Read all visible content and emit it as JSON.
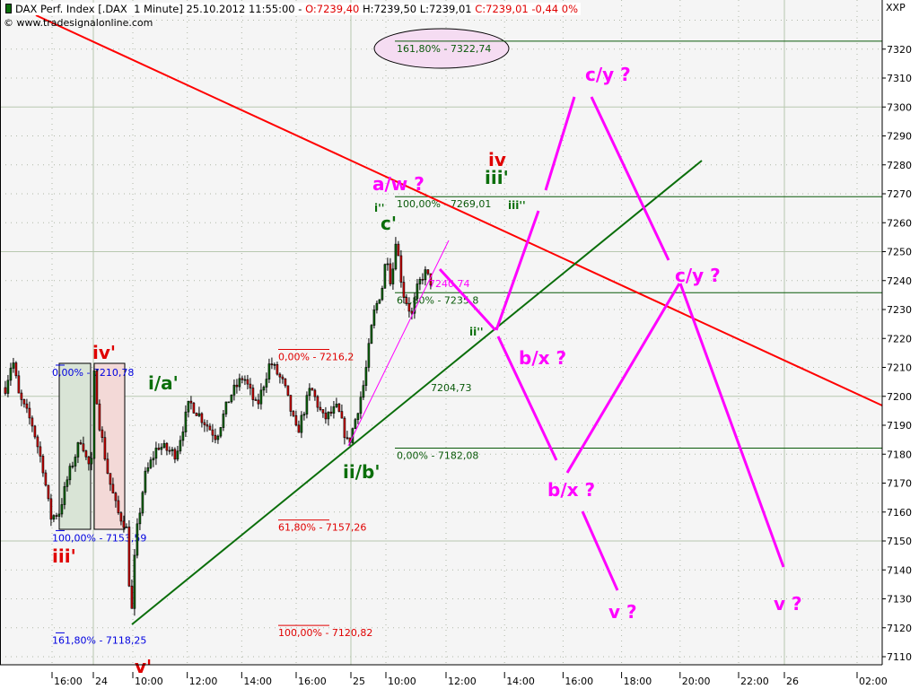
{
  "header": {
    "symbol": "DAX Perf. Index [.DAX  1 Minute] 25.10.2012 11:55:00 - ",
    "open": "O:7239,40",
    "high_low": " H:7239,50 L:7239,01 ",
    "close_change": "C:7239,01 -0,44 0%",
    "copyright": "© www.tradesignalonline.com",
    "icon": "candlestick-icon"
  },
  "colors": {
    "background": "#f5f5f5",
    "up": "#0a6e0a",
    "down": "#e00000",
    "grid": "#b8c8b0",
    "trend_red": "#ff0000",
    "trend_green": "#0a6e0a",
    "projection": "#ff00ff",
    "fib_blue": "#0000e0",
    "fib_red": "#e00000",
    "fib_green": "#0a5a0a",
    "ellipse_fill": "#f5dcf2"
  },
  "chart_data": {
    "type": "candlestick",
    "title": "DAX Perf. Index [.DAX  1 Minute]",
    "y_axis_unit": "XXP",
    "ylim": [
      7105,
      7335
    ],
    "y_ticks": [
      7110,
      7120,
      7130,
      7140,
      7150,
      7160,
      7170,
      7180,
      7190,
      7200,
      7210,
      7220,
      7230,
      7240,
      7250,
      7260,
      7270,
      7280,
      7290,
      7300,
      7310,
      7320
    ],
    "grid": true,
    "x_ticks": [
      {
        "t": "23 16:00",
        "label": "16:00"
      },
      {
        "t": "24 08:40",
        "label": "24",
        "day": true
      },
      {
        "t": "24 10:00",
        "label": "10:00"
      },
      {
        "t": "24 12:00",
        "label": "12:00"
      },
      {
        "t": "24 14:00",
        "label": "14:00"
      },
      {
        "t": "24 16:00",
        "label": "16:00"
      },
      {
        "t": "25 08:50",
        "label": "25",
        "day": true
      },
      {
        "t": "25 10:00",
        "label": "10:00"
      },
      {
        "t": "25 12:00",
        "label": "12:00"
      },
      {
        "t": "25 14:00",
        "label": "14:00"
      },
      {
        "t": "25 16:00",
        "label": "16:00"
      },
      {
        "t": "25 18:00",
        "label": "18:00"
      },
      {
        "t": "25 20:00",
        "label": "20:00"
      },
      {
        "t": "25 22:00",
        "label": "22:00"
      },
      {
        "t": "26 00:00",
        "label": "26",
        "day": true
      },
      {
        "t": "26 02:00",
        "label": "02:00"
      }
    ],
    "price_path": [
      [
        "23 14:22",
        7203
      ],
      [
        "23 14:37",
        7213
      ],
      [
        "23 14:50",
        7200
      ],
      [
        "23 15:18",
        7190
      ],
      [
        "23 15:40",
        7175
      ],
      [
        "23 15:55",
        7158
      ],
      [
        "23 16:13",
        7160
      ],
      [
        "23 16:31",
        7172
      ],
      [
        "23 16:59",
        7186
      ],
      [
        "23 17:12",
        7176
      ],
      [
        "23 17:20",
        7177
      ],
      [
        "24 08:40",
        7208
      ],
      [
        "24 08:51",
        7190
      ],
      [
        "24 09:09",
        7172
      ],
      [
        "24 09:27",
        7160
      ],
      [
        "24 09:45",
        7155
      ],
      [
        "24 09:55",
        7122
      ],
      [
        "24 10:04",
        7150
      ],
      [
        "24 10:24",
        7172
      ],
      [
        "24 10:53",
        7183
      ],
      [
        "24 11:33",
        7180
      ],
      [
        "24 12:03",
        7198
      ],
      [
        "24 12:32",
        7192
      ],
      [
        "24 13:02",
        7186
      ],
      [
        "24 13:32",
        7200
      ],
      [
        "24 14:02",
        7207
      ],
      [
        "24 14:31",
        7196
      ],
      [
        "24 15:01",
        7212
      ],
      [
        "24 15:31",
        7204
      ],
      [
        "24 16:00",
        7187
      ],
      [
        "24 16:24",
        7203
      ],
      [
        "24 16:47",
        7192
      ],
      [
        "24 17:11",
        7196
      ],
      [
        "24 17:30",
        7183
      ],
      [
        "25 08:57",
        7192
      ],
      [
        "25 09:15",
        7205
      ],
      [
        "25 09:33",
        7228
      ],
      [
        "25 09:51",
        7238
      ],
      [
        "25 10:00",
        7250
      ],
      [
        "25 10:09",
        7238
      ],
      [
        "25 10:18",
        7255
      ],
      [
        "25 10:32",
        7236
      ],
      [
        "25 10:50",
        7228
      ],
      [
        "25 11:02",
        7238
      ],
      [
        "25 11:15",
        7243
      ],
      [
        "25 11:30",
        7239
      ]
    ],
    "fib_levels": {
      "blue": [
        {
          "price": 7210.78,
          "label": "0,00% - 7210,78"
        },
        {
          "price": 7153.59,
          "label": "100,00% - 7153,59"
        },
        {
          "price": 7118.25,
          "label": "161,80% - 7118,25"
        }
      ],
      "red": [
        {
          "price": 7216.2,
          "label": "0,00% - 7216,2"
        },
        {
          "price": 7157.26,
          "label": "61,80% - 7157,26"
        },
        {
          "price": 7120.82,
          "label": "100,00% - 7120,82"
        }
      ],
      "green": [
        {
          "price": 7322.74,
          "label": "161,80% - 7322,74"
        },
        {
          "price": 7269.01,
          "label": "100,00% - 7269,01"
        },
        {
          "price": 7235.8,
          "label": "61,80% - 7235,8"
        },
        {
          "price": 7182.08,
          "label": "0,00% - 7182,08"
        }
      ],
      "green_extra_label": "7204,73",
      "projection_label": "7240,74"
    },
    "wave_labels": {
      "iv_prime": "iv'",
      "iii_prime_red": "iii'",
      "v_prime": "v'",
      "i_a": "i/a'",
      "ii_b": "ii/b'",
      "c_prime": "c'",
      "i_dprime": "i''",
      "ii_dprime": "ii''",
      "iii_dprime": "iii''",
      "iii_prime_green": "iii'",
      "iv": "iv",
      "a_w": "a/w ?",
      "c_y_1": "c/y ?",
      "c_y_2": "c/y ?",
      "b_x_1": "b/x ?",
      "b_x_2": "b/x ?",
      "v_1": "v ?",
      "v_2": "v ?"
    }
  }
}
